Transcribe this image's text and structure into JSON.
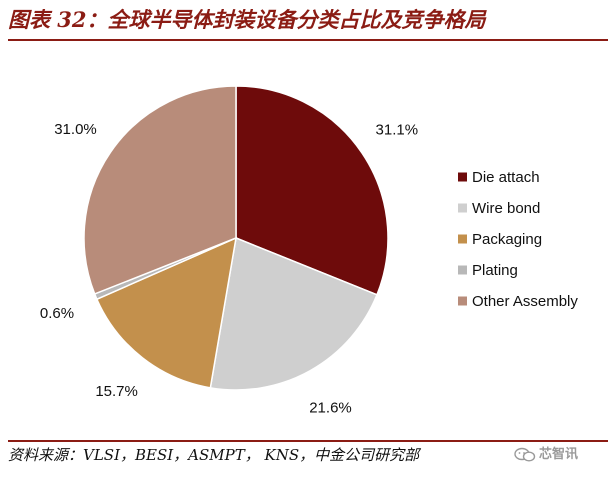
{
  "header": {
    "title": "图表 32：全球半导体封装设备分类占比及竞争格局"
  },
  "footer": {
    "source": "资料来源：VLSI，BESI，ASMPT， KNS，中金公司研究部",
    "watermark_text": "芯智讯",
    "watermark_icon": "wechat-icon"
  },
  "chart_data": {
    "type": "pie",
    "start_angle_deg": 0,
    "direction": "clockwise",
    "legend_position": "right",
    "slices": [
      {
        "name": "Die attach",
        "value": 31.1,
        "label": "31.1%",
        "color": "#6e0b0b"
      },
      {
        "name": "Wire bond",
        "value": 21.6,
        "label": "21.6%",
        "color": "#cfcfcf"
      },
      {
        "name": "Packaging",
        "value": 15.7,
        "label": "15.7%",
        "color": "#c3904c"
      },
      {
        "name": "Plating",
        "value": 0.6,
        "label": "0.6%",
        "color": "#b8b8b8"
      },
      {
        "name": "Other Assembly",
        "value": 31.0,
        "label": "31.0%",
        "color": "#b88c7a"
      }
    ]
  }
}
